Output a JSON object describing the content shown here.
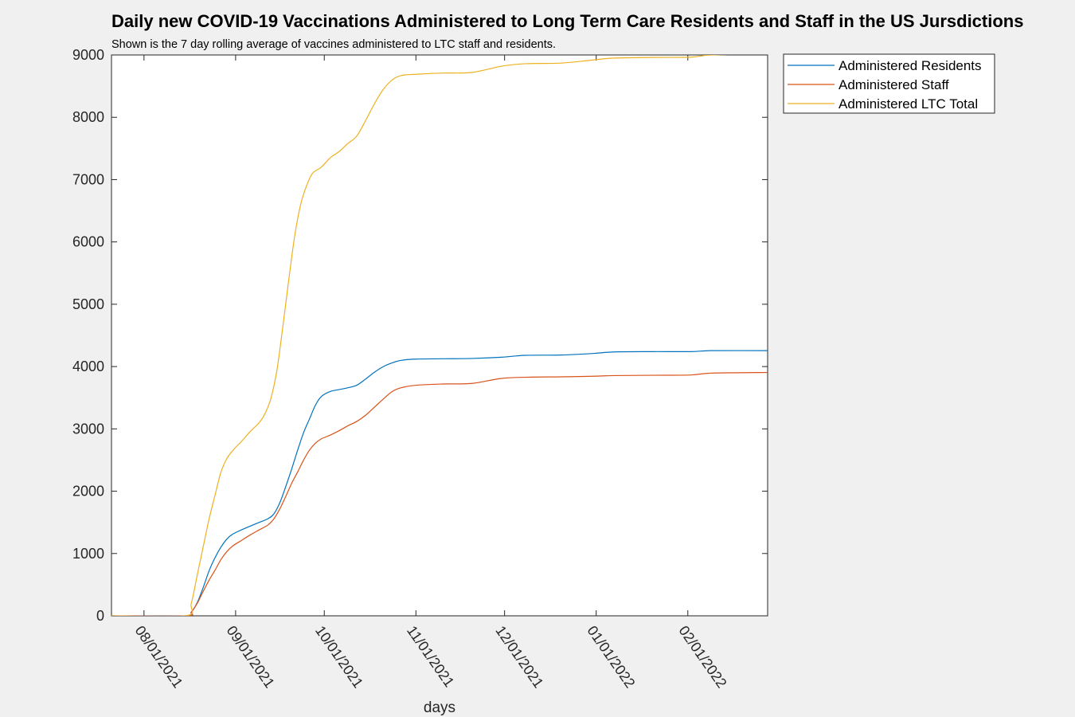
{
  "chart_data": {
    "type": "line",
    "title": "Daily new COVID-19 Vaccinations Administered to Long Term Care Residents and Staff in the US Jursdictions",
    "subtitle": "Shown is the 7 day rolling average of vaccines administered to LTC staff and residents.",
    "xlabel": "days",
    "ylabel": "",
    "xlim": [
      "2021-07-21",
      "2022-02-28"
    ],
    "ylim": [
      0,
      9000
    ],
    "yticks": [
      0,
      1000,
      2000,
      3000,
      4000,
      5000,
      6000,
      7000,
      8000,
      9000
    ],
    "xticks": [
      "2021-08-01",
      "2021-09-01",
      "2021-10-01",
      "2021-11-01",
      "2021-12-01",
      "2022-01-01",
      "2022-02-01"
    ],
    "xtick_labels": [
      "08/01/2021",
      "09/01/2021",
      "10/01/2021",
      "11/01/2021",
      "12/01/2021",
      "01/01/2022",
      "02/01/2022"
    ],
    "grid": false,
    "legend_position": "outside-top-right",
    "series": [
      {
        "name": "Administered Residents",
        "color": "#0072bd",
        "points": [
          [
            "2021-07-21",
            0
          ],
          [
            "2021-08-15",
            0
          ],
          [
            "2021-08-17",
            60
          ],
          [
            "2021-08-19",
            210
          ],
          [
            "2021-08-21",
            450
          ],
          [
            "2021-08-23",
            720
          ],
          [
            "2021-08-25",
            930
          ],
          [
            "2021-08-27",
            1100
          ],
          [
            "2021-08-29",
            1230
          ],
          [
            "2021-08-31",
            1310
          ],
          [
            "2021-09-03",
            1380
          ],
          [
            "2021-09-06",
            1440
          ],
          [
            "2021-09-09",
            1500
          ],
          [
            "2021-09-12",
            1560
          ],
          [
            "2021-09-14",
            1640
          ],
          [
            "2021-09-16",
            1820
          ],
          [
            "2021-09-18",
            2080
          ],
          [
            "2021-09-20",
            2360
          ],
          [
            "2021-09-22",
            2660
          ],
          [
            "2021-09-24",
            2940
          ],
          [
            "2021-09-26",
            3160
          ],
          [
            "2021-09-28",
            3380
          ],
          [
            "2021-09-30",
            3520
          ],
          [
            "2021-10-03",
            3600
          ],
          [
            "2021-10-06",
            3630
          ],
          [
            "2021-10-09",
            3660
          ],
          [
            "2021-10-12",
            3700
          ],
          [
            "2021-10-15",
            3800
          ],
          [
            "2021-10-18",
            3910
          ],
          [
            "2021-10-21",
            4000
          ],
          [
            "2021-10-24",
            4060
          ],
          [
            "2021-10-27",
            4100
          ],
          [
            "2021-11-01",
            4120
          ],
          [
            "2021-11-10",
            4125
          ],
          [
            "2021-11-20",
            4130
          ],
          [
            "2021-11-30",
            4150
          ],
          [
            "2021-12-08",
            4180
          ],
          [
            "2021-12-20",
            4185
          ],
          [
            "2021-12-31",
            4210
          ],
          [
            "2022-01-07",
            4235
          ],
          [
            "2022-01-20",
            4240
          ],
          [
            "2022-02-02",
            4240
          ],
          [
            "2022-02-09",
            4255
          ],
          [
            "2022-02-28",
            4255
          ]
        ]
      },
      {
        "name": "Administered Staff",
        "color": "#d95319",
        "points": [
          [
            "2021-07-21",
            0
          ],
          [
            "2021-08-15",
            0
          ],
          [
            "2021-08-17",
            60
          ],
          [
            "2021-08-19",
            200
          ],
          [
            "2021-08-21",
            390
          ],
          [
            "2021-08-23",
            570
          ],
          [
            "2021-08-25",
            730
          ],
          [
            "2021-08-27",
            900
          ],
          [
            "2021-08-29",
            1030
          ],
          [
            "2021-08-31",
            1120
          ],
          [
            "2021-09-03",
            1210
          ],
          [
            "2021-09-06",
            1300
          ],
          [
            "2021-09-09",
            1380
          ],
          [
            "2021-09-12",
            1460
          ],
          [
            "2021-09-14",
            1560
          ],
          [
            "2021-09-16",
            1720
          ],
          [
            "2021-09-18",
            1920
          ],
          [
            "2021-09-20",
            2130
          ],
          [
            "2021-09-22",
            2310
          ],
          [
            "2021-09-24",
            2500
          ],
          [
            "2021-09-26",
            2660
          ],
          [
            "2021-09-28",
            2770
          ],
          [
            "2021-09-30",
            2840
          ],
          [
            "2021-10-03",
            2900
          ],
          [
            "2021-10-06",
            2970
          ],
          [
            "2021-10-09",
            3050
          ],
          [
            "2021-10-12",
            3120
          ],
          [
            "2021-10-15",
            3220
          ],
          [
            "2021-10-18",
            3350
          ],
          [
            "2021-10-21",
            3480
          ],
          [
            "2021-10-24",
            3600
          ],
          [
            "2021-10-27",
            3660
          ],
          [
            "2021-11-01",
            3700
          ],
          [
            "2021-11-10",
            3720
          ],
          [
            "2021-11-20",
            3730
          ],
          [
            "2021-11-30",
            3810
          ],
          [
            "2021-12-10",
            3830
          ],
          [
            "2021-12-20",
            3835
          ],
          [
            "2021-12-31",
            3845
          ],
          [
            "2022-01-07",
            3855
          ],
          [
            "2022-01-20",
            3860
          ],
          [
            "2022-02-02",
            3865
          ],
          [
            "2022-02-09",
            3895
          ],
          [
            "2022-02-28",
            3905
          ]
        ]
      },
      {
        "name": "Administered LTC Total",
        "color": "#edb120",
        "points": [
          [
            "2021-07-21",
            0
          ],
          [
            "2021-08-15",
            0
          ],
          [
            "2021-08-17",
            200
          ],
          [
            "2021-08-19",
            650
          ],
          [
            "2021-08-21",
            1100
          ],
          [
            "2021-08-23",
            1550
          ],
          [
            "2021-08-25",
            1930
          ],
          [
            "2021-08-27",
            2300
          ],
          [
            "2021-08-29",
            2520
          ],
          [
            "2021-08-31",
            2650
          ],
          [
            "2021-09-03",
            2800
          ],
          [
            "2021-09-06",
            2960
          ],
          [
            "2021-09-09",
            3100
          ],
          [
            "2021-09-11",
            3250
          ],
          [
            "2021-09-13",
            3500
          ],
          [
            "2021-09-15",
            3950
          ],
          [
            "2021-09-17",
            4650
          ],
          [
            "2021-09-19",
            5400
          ],
          [
            "2021-09-21",
            6100
          ],
          [
            "2021-09-23",
            6600
          ],
          [
            "2021-09-25",
            6900
          ],
          [
            "2021-09-27",
            7100
          ],
          [
            "2021-09-30",
            7200
          ],
          [
            "2021-10-03",
            7350
          ],
          [
            "2021-10-06",
            7450
          ],
          [
            "2021-10-09",
            7580
          ],
          [
            "2021-10-12",
            7700
          ],
          [
            "2021-10-15",
            7950
          ],
          [
            "2021-10-18",
            8220
          ],
          [
            "2021-10-21",
            8450
          ],
          [
            "2021-10-24",
            8600
          ],
          [
            "2021-10-27",
            8670
          ],
          [
            "2021-11-01",
            8690
          ],
          [
            "2021-11-10",
            8710
          ],
          [
            "2021-11-20",
            8720
          ],
          [
            "2021-11-30",
            8820
          ],
          [
            "2021-12-08",
            8860
          ],
          [
            "2021-12-20",
            8870
          ],
          [
            "2021-12-31",
            8920
          ],
          [
            "2022-01-07",
            8950
          ],
          [
            "2022-01-20",
            8960
          ],
          [
            "2022-02-02",
            8965
          ],
          [
            "2022-02-09",
            9000
          ],
          [
            "2022-02-28",
            9020
          ]
        ]
      }
    ]
  }
}
